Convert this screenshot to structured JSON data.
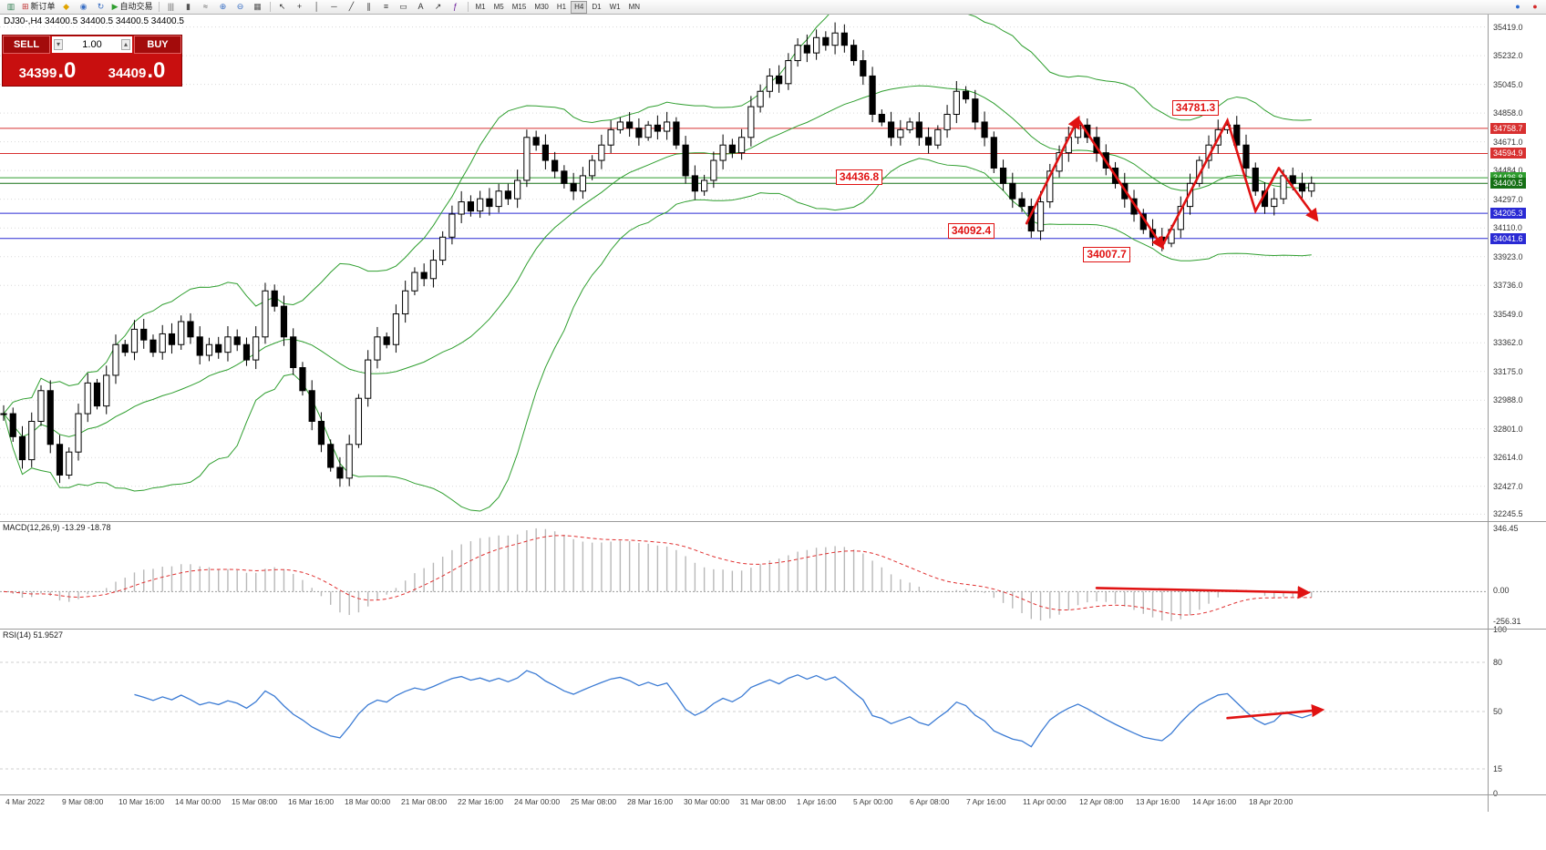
{
  "toolbar": {
    "groups": [
      {
        "items": [
          {
            "name": "new-chart-icon",
            "glyph": "▥",
            "color": "#2f7d4f"
          },
          {
            "name": "new-order-button",
            "glyph": "⊞",
            "color": "#c03030",
            "label": "新订单"
          },
          {
            "name": "metaquotes-icon",
            "glyph": "◆",
            "color": "#e0a400"
          },
          {
            "name": "profile-icon",
            "glyph": "◉",
            "color": "#3a6fc4"
          },
          {
            "name": "refresh-icon",
            "glyph": "↻",
            "color": "#3a6fc4"
          },
          {
            "name": "auto-trading-button",
            "glyph": "▶",
            "color": "#2f9e2f",
            "label": "自动交易"
          }
        ]
      },
      {
        "items": [
          {
            "name": "bar-chart-icon",
            "glyph": "|||",
            "color": "#555555"
          },
          {
            "name": "candlestick-chart-icon",
            "glyph": "▮",
            "color": "#555555"
          },
          {
            "name": "line-chart-icon",
            "glyph": "≈",
            "color": "#555555"
          },
          {
            "name": "zoom-in-icon",
            "glyph": "⊕",
            "color": "#3a6fc4"
          },
          {
            "name": "zoom-out-icon",
            "glyph": "⊖",
            "color": "#3a6fc4"
          },
          {
            "name": "tile-windows-icon",
            "glyph": "▦",
            "color": "#555555"
          }
        ]
      },
      {
        "items": [
          {
            "name": "cursor-icon",
            "glyph": "↖",
            "color": "#333333"
          },
          {
            "name": "crosshair-icon",
            "glyph": "+",
            "color": "#333333"
          },
          {
            "name": "vertical-line-icon",
            "glyph": "│",
            "color": "#333333"
          },
          {
            "name": "horizontal-line-icon",
            "glyph": "─",
            "color": "#333333"
          },
          {
            "name": "trendline-icon",
            "glyph": "╱",
            "color": "#333333"
          },
          {
            "name": "channel-icon",
            "glyph": "∥",
            "color": "#333333"
          },
          {
            "name": "fibonacci-icon",
            "glyph": "≡",
            "color": "#333333"
          },
          {
            "name": "shapes-icon",
            "glyph": "▭",
            "color": "#333333"
          },
          {
            "name": "text-icon",
            "glyph": "A",
            "color": "#333333"
          },
          {
            "name": "arrow-tool-icon",
            "glyph": "↗",
            "color": "#333333"
          },
          {
            "name": "indicators-icon",
            "glyph": "ƒ",
            "color": "#6a1b9a"
          }
        ]
      }
    ],
    "timeframes": [
      "M1",
      "M5",
      "M15",
      "M30",
      "H1",
      "H4",
      "D1",
      "W1",
      "MN"
    ],
    "active_timeframe": "H4",
    "right_icons": [
      {
        "name": "search-icon",
        "glyph": "●",
        "color": "#2a6ad0"
      },
      {
        "name": "notification-icon",
        "glyph": "●",
        "color": "#d42a2a"
      }
    ]
  },
  "trade_panel": {
    "sell_label": "SELL",
    "buy_label": "BUY",
    "volume": "1.00",
    "sell_price": "34399",
    "sell_price_pips": ".0",
    "buy_price": "34409",
    "buy_price_pips": ".0"
  },
  "chart": {
    "title": "DJ30-,H4 34400.5 34400.5 34400.5 34400.5",
    "price_axis_labels": [
      "35419.0",
      "35232.0",
      "35045.0",
      "34858.0",
      "34671.0",
      "34484.0",
      "34297.0",
      "34110.0",
      "33923.0",
      "33736.0",
      "33549.0",
      "33362.0",
      "33175.0",
      "32988.0",
      "32801.0",
      "32614.0",
      "32427.0",
      "32245.5"
    ],
    "levels": [
      {
        "price": 34758.7,
        "text": "34758.7",
        "color": "#d83030"
      },
      {
        "price": 34594.9,
        "text": "34594.9",
        "color": "#d83030"
      },
      {
        "price": 34436.8,
        "text": "34436.8",
        "color": "#2f9e2f"
      },
      {
        "price": 34400.5,
        "text": "34400.5",
        "color": "#157015"
      },
      {
        "price": 34205.3,
        "text": "34205.3",
        "color": "#2a2ad4"
      },
      {
        "price": 34041.6,
        "text": "34041.6",
        "color": "#2a2ad4"
      }
    ],
    "closes": [
      32900,
      32750,
      32600,
      32850,
      33050,
      32700,
      32500,
      32650,
      32900,
      33100,
      32950,
      33150,
      33350,
      33300,
      33450,
      33380,
      33300,
      33420,
      33350,
      33500,
      33400,
      33280,
      33350,
      33300,
      33400,
      33350,
      33250,
      33400,
      33700,
      33600,
      33400,
      33200,
      33050,
      32850,
      32700,
      32550,
      32480,
      32700,
      33000,
      33250,
      33400,
      33350,
      33550,
      33700,
      33820,
      33780,
      33900,
      34050,
      34200,
      34280,
      34220,
      34300,
      34250,
      34350,
      34300,
      34420,
      34700,
      34650,
      34550,
      34480,
      34400,
      34350,
      34450,
      34550,
      34650,
      34750,
      34800,
      34760,
      34700,
      34780,
      34740,
      34800,
      34650,
      34450,
      34350,
      34420,
      34550,
      34650,
      34600,
      34700,
      34900,
      35000,
      35100,
      35050,
      35200,
      35300,
      35250,
      35350,
      35300,
      35380,
      35300,
      35200,
      35100,
      34850,
      34800,
      34700,
      34750,
      34800,
      34700,
      34650,
      34750,
      34850,
      35000,
      34950,
      34800,
      34700,
      34500,
      34400,
      34300,
      34250,
      34090,
      34280,
      34480,
      34600,
      34700,
      34780,
      34700,
      34600,
      34500,
      34400,
      34300,
      34200,
      34100,
      34050,
      34010,
      34100,
      34250,
      34400,
      34550,
      34650,
      34750,
      34780,
      34650,
      34500,
      34350,
      34250,
      34300,
      34450,
      34400,
      34350,
      34400.5
    ],
    "bollinger_period": 20,
    "time_axis": [
      "4 Mar 2022",
      "9 Mar 08:00",
      "10 Mar 16:00",
      "14 Mar 00:00",
      "15 Mar 08:00",
      "16 Mar 16:00",
      "18 Mar 00:00",
      "21 Mar 08:00",
      "22 Mar 16:00",
      "24 Mar 00:00",
      "25 Mar 08:00",
      "28 Mar 16:00",
      "30 Mar 00:00",
      "31 Mar 08:00",
      "1 Apr 16:00",
      "5 Apr 00:00",
      "6 Apr 08:00",
      "7 Apr 16:00",
      "11 Apr 00:00",
      "12 Apr 08:00",
      "13 Apr 16:00",
      "14 Apr 16:00",
      "18 Apr 20:00"
    ],
    "annotations": {
      "labels": [
        {
          "text": "34781.3",
          "idx": 128,
          "price": 34890
        },
        {
          "text": "34436.8",
          "idx": 92,
          "price": 34436.8
        },
        {
          "text": "34092.4",
          "idx": 104,
          "price": 34085
        },
        {
          "text": "34007.7",
          "idx": 118.5,
          "price": 33935
        }
      ],
      "zigzag": [
        [
          109.5,
          34140
        ],
        [
          115,
          34820
        ],
        [
          124,
          33990
        ],
        [
          131,
          34810
        ],
        [
          134,
          34220
        ],
        [
          136.5,
          34500
        ],
        [
          140.5,
          34170
        ]
      ]
    }
  },
  "macd": {
    "label": "MACD(12,26,9) -13.29 -18.78",
    "axis": [
      "346.45",
      "0.00",
      "-256.31"
    ]
  },
  "rsi": {
    "label": "RSI(14) 51.9527",
    "axis": [
      "100",
      "80",
      "50",
      "15",
      "0"
    ],
    "levels": [
      80,
      50,
      15
    ]
  },
  "colors": {
    "annotation": "#e01212",
    "bollinger": "#2e9e2e",
    "grid": "#d9d9d9",
    "candle_up": "#ffffff",
    "candle_down": "#000000",
    "macd_signal": "#e03030",
    "macd_hist": "#b8b8b8",
    "rsi_line": "#3b7bd4"
  }
}
